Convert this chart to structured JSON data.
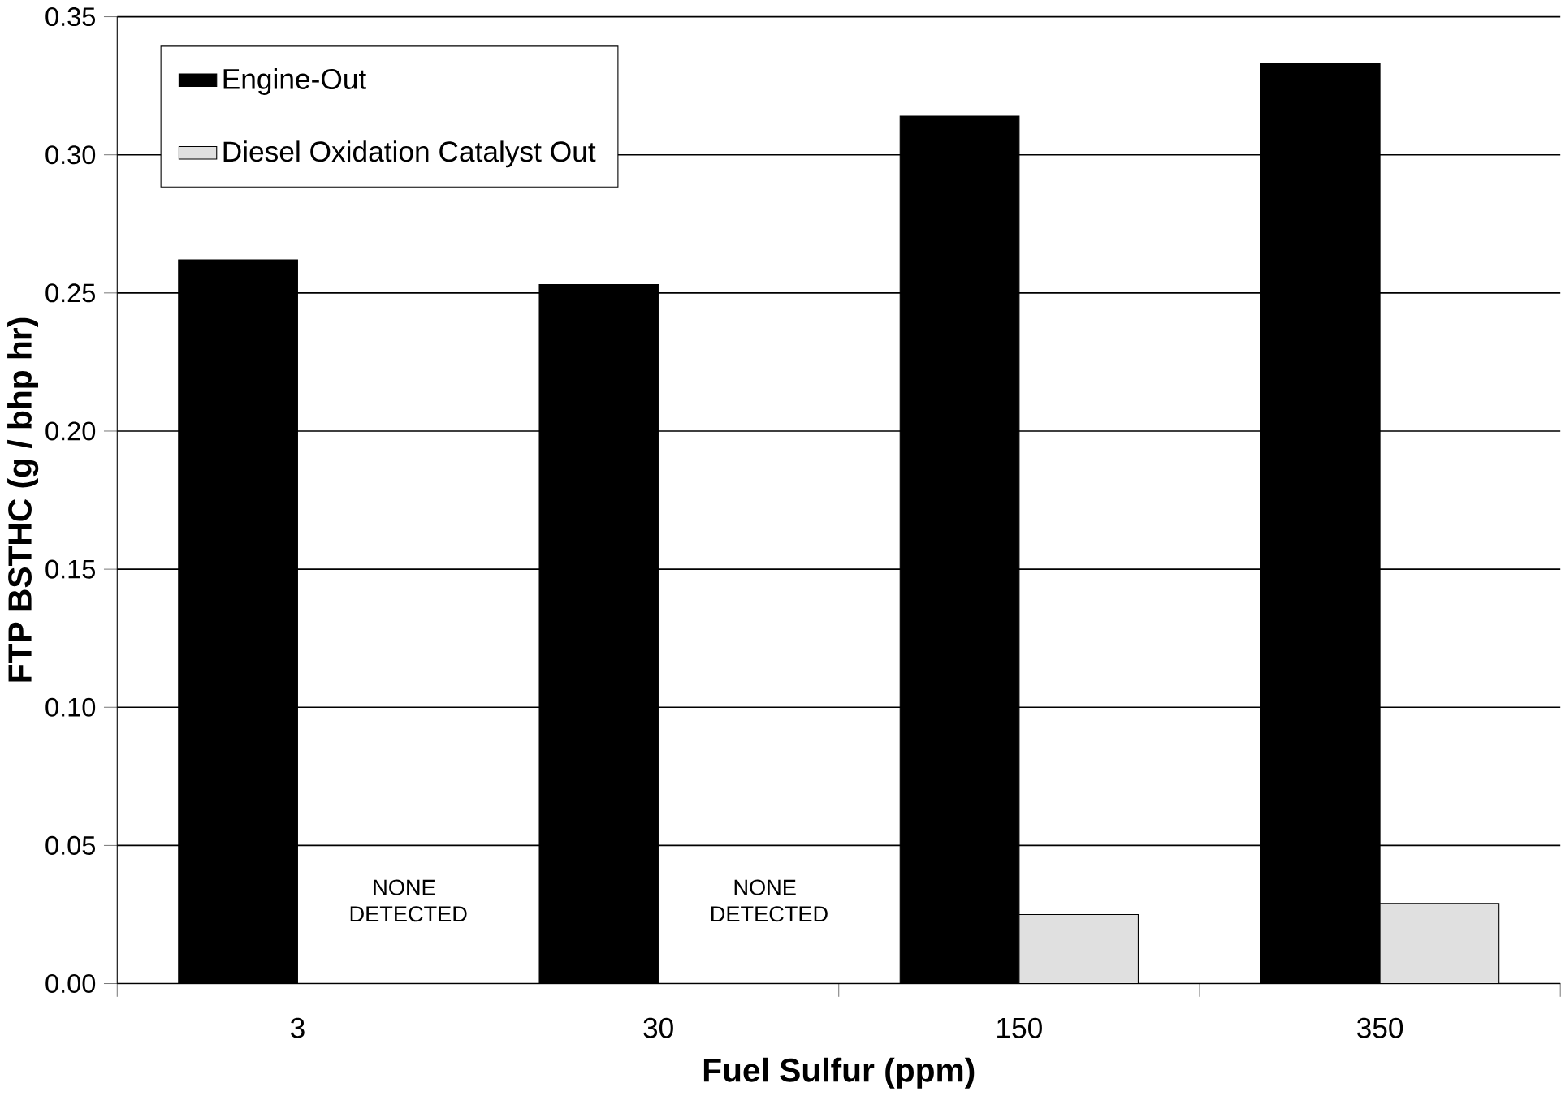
{
  "chart_data": {
    "type": "bar",
    "xlabel": "Fuel Sulfur (ppm)",
    "ylabel": "FTP BSTHC (g / bhp hr)",
    "categories": [
      "3",
      "30",
      "150",
      "350"
    ],
    "series": [
      {
        "name": "Engine-Out",
        "color": "#000000",
        "values": [
          0.262,
          0.253,
          0.314,
          0.333
        ]
      },
      {
        "name": "Diesel Oxidation Catalyst Out",
        "color": "#e0e0e0",
        "values": [
          null,
          null,
          0.025,
          0.029
        ]
      }
    ],
    "ylim": [
      0,
      0.35
    ],
    "yticks": [
      {
        "value": 0,
        "label": "0.00"
      },
      {
        "value": 0.05,
        "label": "0.05"
      },
      {
        "value": 0.1,
        "label": "0.10"
      },
      {
        "value": 0.15,
        "label": "0.15"
      },
      {
        "value": 0.2,
        "label": "0.20"
      },
      {
        "value": 0.25,
        "label": "0.25"
      },
      {
        "value": 0.3,
        "label": "0.30"
      },
      {
        "value": 0.35,
        "label": "0.35"
      }
    ],
    "grid": "y",
    "legend": "top left",
    "annotations": [
      {
        "text": "NONE DETECTED",
        "x": "3",
        "y": 0.03
      },
      {
        "text": "NONE DETECTED",
        "x": "30",
        "y": 0.03
      }
    ]
  }
}
